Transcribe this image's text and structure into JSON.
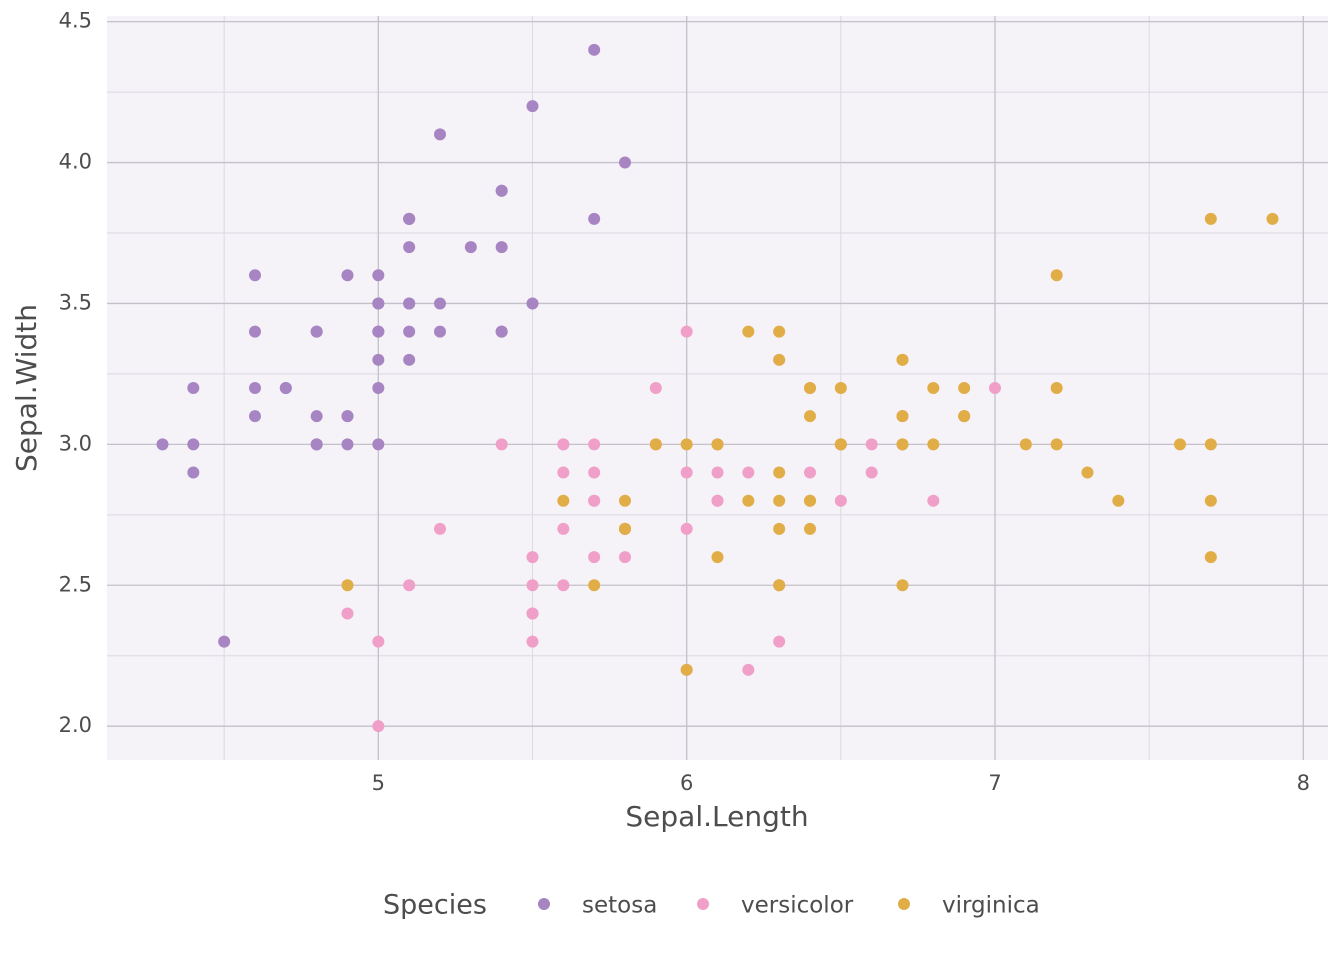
{
  "chart_data": {
    "type": "scatter",
    "x_label": "Sepal.Length",
    "y_label": "Sepal.Width",
    "legend_title": "Species",
    "legend": "bottom",
    "grid": true,
    "xlim": [
      4.12,
      8.08
    ],
    "ylim": [
      1.88,
      4.52
    ],
    "xticks": [
      5,
      6,
      7,
      8
    ],
    "yticks": [
      {
        "value": 2,
        "label": "2.0"
      },
      2.5,
      {
        "value": 3,
        "label": "3.0"
      },
      3.5,
      {
        "value": 4,
        "label": "4.0"
      },
      4.5
    ],
    "xminorticks": [
      4.5,
      5.5,
      6.5,
      7.5
    ],
    "yminorticks": [
      2.25,
      2.75,
      3.25,
      3.75,
      4.25
    ],
    "series": [
      {
        "name": "setosa",
        "color": "#a785c3",
        "x": [
          5.1,
          4.9,
          4.7,
          4.6,
          5.0,
          5.4,
          4.6,
          5.0,
          4.4,
          4.9,
          5.4,
          4.8,
          4.8,
          4.3,
          5.8,
          5.7,
          5.4,
          5.1,
          5.7,
          5.1,
          5.4,
          5.1,
          4.6,
          5.1,
          4.8,
          5.0,
          5.0,
          5.2,
          5.2,
          4.7,
          4.8,
          5.4,
          5.2,
          5.5,
          4.9,
          5.0,
          5.5,
          4.9,
          4.4,
          5.1,
          5.0,
          4.5,
          4.4,
          5.0,
          5.1,
          4.8,
          5.1,
          4.6,
          5.3,
          5.0
        ],
        "y": [
          3.5,
          3.0,
          3.2,
          3.1,
          3.6,
          3.9,
          3.4,
          3.4,
          2.9,
          3.1,
          3.7,
          3.4,
          3.0,
          3.0,
          4.0,
          4.4,
          3.9,
          3.5,
          3.8,
          3.8,
          3.4,
          3.7,
          3.6,
          3.3,
          3.4,
          3.0,
          3.4,
          3.5,
          3.4,
          3.2,
          3.1,
          3.4,
          4.1,
          4.2,
          3.1,
          3.2,
          3.5,
          3.6,
          3.0,
          3.4,
          3.5,
          2.3,
          3.2,
          3.5,
          3.8,
          3.0,
          3.8,
          3.2,
          3.7,
          3.3
        ]
      },
      {
        "name": "versicolor",
        "color": "#f0a0c8",
        "x": [
          7.0,
          6.4,
          6.9,
          5.5,
          6.5,
          5.7,
          6.3,
          4.9,
          6.6,
          5.2,
          5.0,
          5.9,
          6.0,
          6.1,
          5.6,
          6.7,
          5.6,
          5.8,
          6.2,
          5.6,
          5.9,
          6.1,
          6.3,
          6.1,
          6.4,
          6.6,
          6.8,
          6.7,
          6.0,
          5.7,
          5.5,
          5.5,
          5.8,
          6.0,
          5.4,
          6.0,
          6.7,
          6.3,
          5.6,
          5.5,
          5.5,
          6.1,
          5.8,
          5.0,
          5.6,
          5.7,
          5.7,
          6.2,
          5.1,
          5.7
        ],
        "y": [
          3.2,
          3.2,
          3.1,
          2.3,
          2.8,
          2.8,
          3.3,
          2.4,
          2.9,
          2.7,
          2.0,
          3.0,
          2.2,
          2.9,
          2.9,
          3.1,
          3.0,
          2.7,
          2.2,
          2.5,
          3.2,
          2.8,
          2.5,
          2.8,
          2.9,
          3.0,
          2.8,
          3.0,
          2.9,
          2.6,
          2.4,
          2.4,
          2.7,
          2.7,
          3.0,
          3.4,
          3.1,
          2.3,
          3.0,
          2.5,
          2.6,
          3.0,
          2.6,
          2.3,
          2.7,
          3.0,
          2.9,
          2.9,
          2.5,
          2.8
        ]
      },
      {
        "name": "virginica",
        "color": "#e1ad47",
        "x": [
          6.3,
          5.8,
          7.1,
          6.3,
          6.5,
          7.6,
          4.9,
          7.3,
          6.7,
          7.2,
          6.5,
          6.4,
          6.8,
          5.7,
          5.8,
          6.4,
          6.5,
          7.7,
          7.7,
          6.0,
          6.9,
          5.6,
          7.7,
          6.3,
          6.7,
          7.2,
          6.2,
          6.1,
          6.4,
          7.2,
          7.4,
          7.9,
          6.4,
          6.3,
          6.1,
          7.7,
          6.3,
          6.4,
          6.0,
          6.9,
          6.7,
          6.9,
          5.8,
          6.8,
          6.7,
          6.7,
          6.3,
          6.5,
          6.2,
          5.9
        ],
        "y": [
          3.3,
          2.7,
          3.0,
          2.9,
          3.0,
          3.0,
          2.5,
          2.9,
          2.5,
          3.6,
          3.2,
          2.7,
          3.0,
          2.5,
          2.8,
          3.2,
          3.0,
          3.8,
          2.6,
          2.2,
          3.2,
          2.8,
          2.8,
          2.7,
          3.3,
          3.2,
          2.8,
          3.0,
          2.8,
          3.0,
          2.8,
          3.8,
          2.8,
          2.8,
          2.6,
          3.0,
          3.4,
          3.1,
          3.0,
          3.1,
          3.1,
          3.1,
          2.7,
          3.2,
          3.3,
          3.0,
          2.5,
          3.0,
          3.4,
          3.0
        ]
      }
    ]
  }
}
